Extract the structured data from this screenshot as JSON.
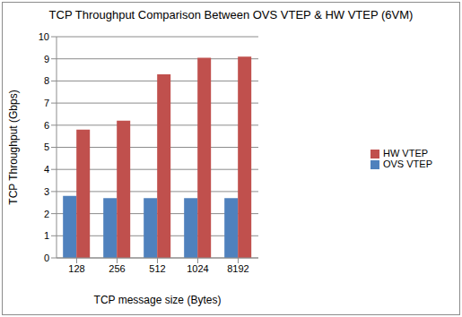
{
  "chart_data": {
    "type": "bar",
    "title": "TCP Throughput Comparison Between OVS VTEP & HW VTEP (6VM)",
    "x_label": "TCP message size (Bytes)",
    "y_label": "TCP Throughput (Gbps)",
    "categories": [
      "128",
      "256",
      "512",
      "1024",
      "8192"
    ],
    "series": [
      {
        "name": "OVS VTEP",
        "color": "#4f81bd",
        "values": [
          2.8,
          2.7,
          2.7,
          2.7,
          2.7
        ]
      },
      {
        "name": "HW VTEP",
        "color": "#c0504d",
        "values": [
          5.8,
          6.2,
          8.3,
          9.05,
          9.1
        ]
      }
    ],
    "ylim": [
      0,
      10
    ],
    "yticks": [
      0,
      1,
      2,
      3,
      4,
      5,
      6,
      7,
      8,
      9,
      10
    ],
    "grid": true,
    "legend": "right"
  }
}
